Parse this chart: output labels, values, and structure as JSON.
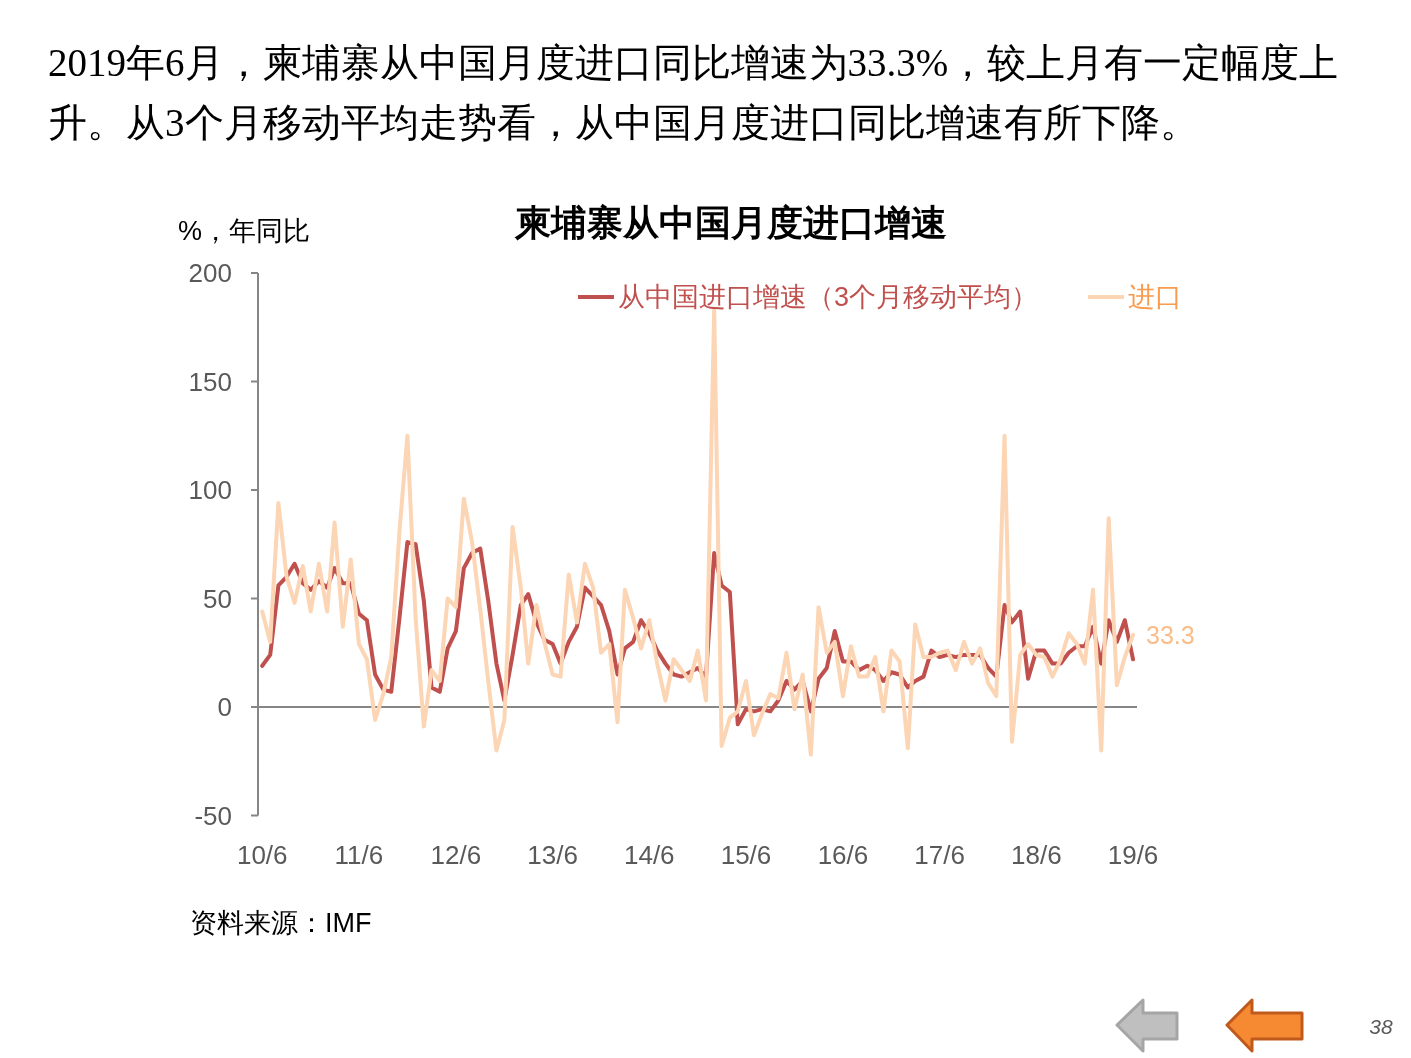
{
  "chart_data": {
    "type": "line",
    "title": "柬埔寨从中国月度进口增速",
    "ylabel": "%，年同比",
    "annotations": [
      "2019年6月，柬埔寨从中国月度进口同比增速为33.3%，较上月有一定幅度上升。从3个月移动平均走势看，从中国月度进口同比增速有所下降。",
      "资料来源：IMF",
      "38"
    ],
    "x": [
      "2010-06",
      "2010-07",
      "2010-08",
      "2010-09",
      "2010-10",
      "2010-11",
      "2010-12",
      "2011-01",
      "2011-02",
      "2011-03",
      "2011-04",
      "2011-05",
      "2011-06",
      "2011-07",
      "2011-08",
      "2011-09",
      "2011-10",
      "2011-11",
      "2011-12",
      "2012-01",
      "2012-02",
      "2012-03",
      "2012-04",
      "2012-05",
      "2012-06",
      "2012-07",
      "2012-08",
      "2012-09",
      "2012-10",
      "2012-11",
      "2012-12",
      "2013-01",
      "2013-02",
      "2013-03",
      "2013-04",
      "2013-05",
      "2013-06",
      "2013-07",
      "2013-08",
      "2013-09",
      "2013-10",
      "2013-11",
      "2013-12",
      "2014-01",
      "2014-02",
      "2014-03",
      "2014-04",
      "2014-05",
      "2014-06",
      "2014-07",
      "2014-08",
      "2014-09",
      "2014-10",
      "2014-11",
      "2014-12",
      "2015-01",
      "2015-02",
      "2015-03",
      "2015-04",
      "2015-05",
      "2015-06",
      "2015-07",
      "2015-08",
      "2015-09",
      "2015-10",
      "2015-11",
      "2015-12",
      "2016-01",
      "2016-02",
      "2016-03",
      "2016-04",
      "2016-05",
      "2016-06",
      "2016-07",
      "2016-08",
      "2016-09",
      "2016-10",
      "2016-11",
      "2016-12",
      "2017-01",
      "2017-02",
      "2017-03",
      "2017-04",
      "2017-05",
      "2017-06",
      "2017-07",
      "2017-08",
      "2017-09",
      "2017-10",
      "2017-11",
      "2017-12",
      "2018-01",
      "2018-02",
      "2018-03",
      "2018-04",
      "2018-05",
      "2018-06",
      "2018-07",
      "2018-08",
      "2018-09",
      "2018-10",
      "2018-11",
      "2018-12",
      "2019-01",
      "2019-02",
      "2019-03",
      "2019-04",
      "2019-05",
      "2019-06"
    ],
    "series": [
      {
        "name": "从中国进口增速（3个月移动平均）",
        "color": "#c0504d",
        "values": [
          19,
          24,
          56,
          60,
          66,
          57,
          54,
          58,
          55,
          64,
          57,
          57,
          43,
          40,
          15,
          8,
          7,
          41,
          76,
          75,
          49,
          9,
          7,
          27,
          35,
          64,
          71,
          73,
          49,
          20,
          3,
          24,
          47,
          52,
          39,
          31,
          29,
          20,
          30,
          37,
          55,
          51,
          47,
          35,
          15,
          27,
          30,
          40,
          34,
          26,
          20,
          15,
          14,
          16,
          18,
          14,
          71,
          56,
          53,
          -8,
          -1,
          -2,
          -1,
          -2,
          3,
          12,
          8,
          12,
          -2,
          13,
          18,
          35,
          21,
          21,
          17,
          19,
          17,
          12,
          16,
          15,
          9,
          12,
          14,
          26,
          23,
          24,
          23,
          24,
          24,
          24,
          18,
          14,
          47,
          39,
          44,
          13,
          26,
          26,
          20,
          20,
          25,
          28,
          28,
          37,
          20,
          40,
          30,
          40,
          22
        ]
      },
      {
        "name": "进口",
        "color": "#fcd5b5",
        "values": [
          44,
          30,
          94,
          60,
          48,
          65,
          44,
          66,
          44,
          85,
          37,
          68,
          29,
          22,
          -6,
          6,
          23,
          81,
          125,
          41,
          -9,
          17,
          12,
          50,
          46,
          96,
          76,
          45,
          12,
          -20,
          -6,
          83,
          55,
          20,
          47,
          30,
          15,
          14,
          61,
          39,
          66,
          55,
          25,
          29,
          -7,
          54,
          41,
          27,
          40,
          20,
          3,
          22,
          17,
          12,
          26,
          3,
          183,
          -18,
          -5,
          -2,
          12,
          -13,
          -3,
          6,
          4,
          25,
          -1,
          15,
          -22,
          46,
          25,
          30,
          5,
          28,
          14,
          14,
          23,
          -2,
          26,
          21,
          -19,
          38,
          23,
          23,
          25,
          26,
          17,
          30,
          20,
          27,
          11,
          5,
          125,
          -16,
          24,
          29,
          24,
          23,
          14,
          22,
          34,
          29,
          20,
          54,
          -20,
          87,
          10,
          23,
          33.3
        ],
        "value_labels": [
          null,
          null,
          null,
          null,
          null,
          null,
          null,
          null,
          null,
          null,
          null,
          null,
          null,
          null,
          null,
          null,
          null,
          null,
          null,
          null,
          null,
          null,
          null,
          null,
          null,
          null,
          null,
          null,
          null,
          null,
          null,
          null,
          null,
          null,
          null,
          null,
          null,
          null,
          null,
          null,
          null,
          null,
          null,
          null,
          null,
          null,
          null,
          null,
          null,
          null,
          null,
          null,
          null,
          null,
          null,
          null,
          null,
          null,
          null,
          null,
          null,
          null,
          null,
          null,
          null,
          null,
          null,
          null,
          null,
          null,
          null,
          null,
          null,
          null,
          null,
          null,
          null,
          null,
          null,
          null,
          null,
          null,
          null,
          null,
          null,
          null,
          null,
          null,
          null,
          null,
          null,
          null,
          null,
          null,
          null,
          null,
          null,
          null,
          null,
          null,
          null,
          null,
          null,
          null,
          null,
          null,
          null,
          null,
          "33.3"
        ]
      }
    ],
    "xlim": [
      "2010-05-16",
      "2019-06-16"
    ],
    "xticks": [
      {
        "value": "2010-06",
        "label": "10/6"
      },
      {
        "value": "2011-06",
        "label": "11/6"
      },
      {
        "value": "2012-06",
        "label": "12/6"
      },
      {
        "value": "2013-06",
        "label": "13/6"
      },
      {
        "value": "2014-06",
        "label": "14/6"
      },
      {
        "value": "2015-06",
        "label": "15/6"
      },
      {
        "value": "2016-06",
        "label": "16/6"
      },
      {
        "value": "2017-06",
        "label": "17/6"
      },
      {
        "value": "2018-06",
        "label": "18/6"
      },
      {
        "value": "2019-06",
        "label": "19/6"
      }
    ],
    "ylim": [
      -50,
      200
    ],
    "yticks": [
      -50,
      0,
      50,
      100,
      150,
      200
    ],
    "legend": "top right",
    "line_style": "solid"
  }
}
